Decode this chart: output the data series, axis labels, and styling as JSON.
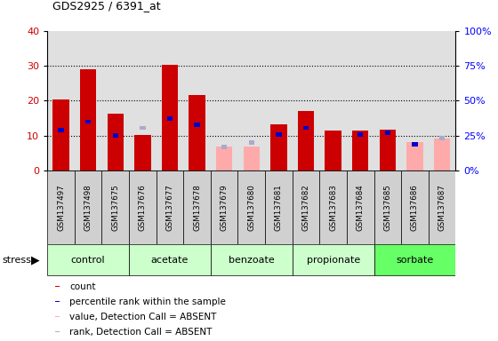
{
  "title": "GDS2925 / 6391_at",
  "samples": [
    "GSM137497",
    "GSM137498",
    "GSM137675",
    "GSM137676",
    "GSM137677",
    "GSM137678",
    "GSM137679",
    "GSM137680",
    "GSM137681",
    "GSM137682",
    "GSM137683",
    "GSM137684",
    "GSM137685",
    "GSM137686",
    "GSM137687"
  ],
  "bar_colors": {
    "present_red": "#cc0000",
    "absent_pink": "#ffaaaa",
    "rank_blue": "#0000cc",
    "rank_absent_blue": "#aaaacc"
  },
  "count_values": [
    20.3,
    29.0,
    16.3,
    10.2,
    30.2,
    21.5,
    null,
    null,
    13.1,
    17.0,
    11.4,
    11.4,
    11.8,
    null,
    null
  ],
  "absent_count_values": [
    null,
    null,
    null,
    null,
    null,
    null,
    6.8,
    6.9,
    null,
    null,
    null,
    null,
    null,
    8.2,
    9.1
  ],
  "rank_values": [
    11.5,
    14.0,
    10.1,
    null,
    14.8,
    13.0,
    null,
    null,
    10.2,
    12.2,
    null,
    10.2,
    10.8,
    7.5,
    null
  ],
  "rank_absent_values": [
    null,
    null,
    null,
    12.2,
    null,
    null,
    6.8,
    8.0,
    null,
    null,
    null,
    null,
    null,
    null,
    9.3
  ],
  "groups_info": [
    [
      0,
      3,
      "control",
      "#ccffcc"
    ],
    [
      3,
      6,
      "acetate",
      "#ccffcc"
    ],
    [
      6,
      9,
      "benzoate",
      "#ccffcc"
    ],
    [
      9,
      12,
      "propionate",
      "#ccffcc"
    ],
    [
      12,
      15,
      "sorbate",
      "#66ff66"
    ]
  ],
  "ylim": [
    0,
    40
  ],
  "yticks_left": [
    0,
    10,
    20,
    30,
    40
  ],
  "plot_bg": "#e0e0e0",
  "sample_label_bg": "#d0d0d0"
}
